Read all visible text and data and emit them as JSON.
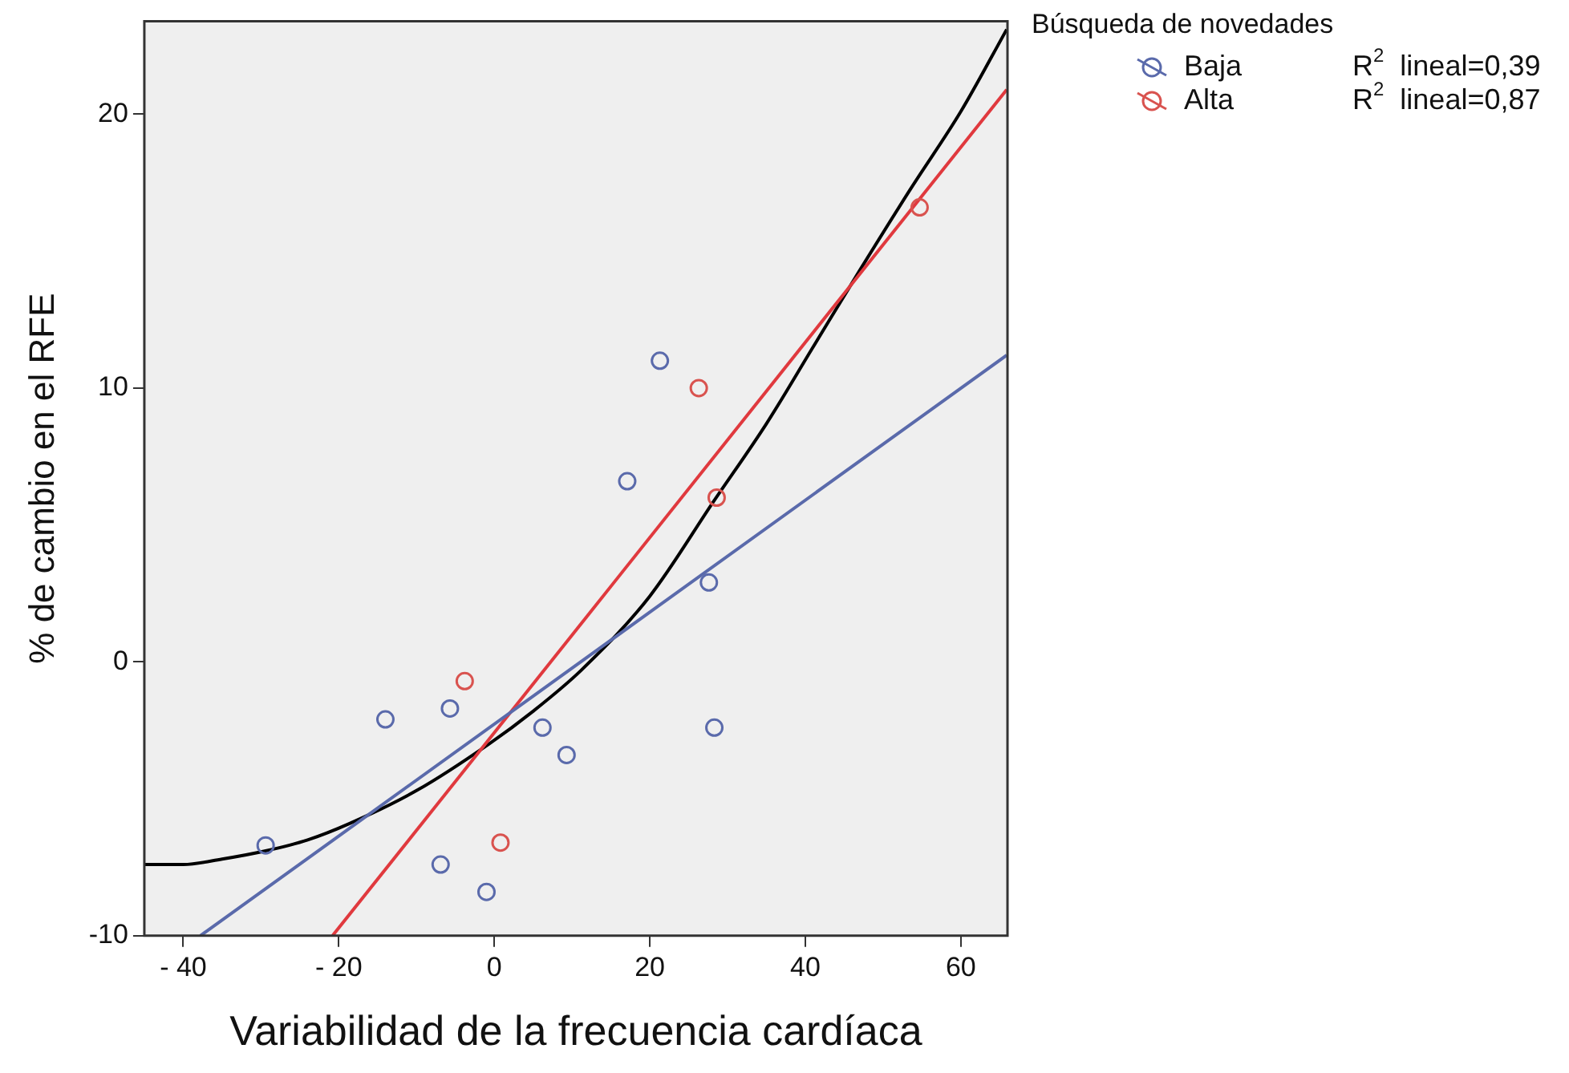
{
  "chart_data": {
    "type": "scatter",
    "xlabel": "Variabilidad de la frecuencia cardíaca",
    "ylabel": "% de cambio en el RFE",
    "legend_title": "Búsqueda de novedades",
    "legend": "top right",
    "xlim": [
      -45,
      66
    ],
    "xticks": [
      {
        "value": -40,
        "label": "- 40"
      },
      {
        "value": -20,
        "label": "- 20"
      },
      0,
      20,
      40,
      60
    ],
    "ylim": [
      -10,
      23.4
    ],
    "yticks": [
      -10,
      0,
      10,
      20
    ],
    "annotations": [
      "R$^{2}$ lineal=0,39",
      "R$^{2}$ lineal=0,87"
    ],
    "series": [
      {
        "name": "Baja",
        "marker": "circle",
        "color": "#5a6aab",
        "x": [
          -29.4,
          -14.0,
          -5.7,
          -6.9,
          -1.0,
          6.2,
          9.3,
          27.6,
          28.3,
          17.1,
          21.3
        ],
        "values": [
          -6.7,
          -2.1,
          -1.7,
          -7.4,
          -8.4,
          -2.4,
          -3.4,
          2.9,
          -2.4,
          6.6,
          11.0
        ]
      },
      {
        "name": "Alta",
        "marker": "circle",
        "color": "#d9534f",
        "x": [
          -3.8,
          0.8,
          26.3,
          28.6,
          54.7
        ],
        "values": [
          -0.7,
          -6.6,
          10.0,
          6.0,
          16.6
        ]
      },
      {
        "type": "line",
        "marker": "none",
        "line_style": "solid",
        "color": "#5a6aab",
        "x": [
          -37.8,
          65.9
        ],
        "values": [
          -10,
          11.2
        ]
      },
      {
        "type": "line",
        "marker": "none",
        "line_style": "solid",
        "color": "#e0393e",
        "x": [
          -20.8,
          65.9
        ],
        "values": [
          -10,
          20.9
        ]
      },
      {
        "type": "line",
        "marker": "none",
        "line_style": "solid",
        "color": "#000000",
        "x": [
          -45,
          -40,
          -35,
          -29.4,
          -24,
          -18.6,
          -10,
          -0.7,
          5,
          11.2,
          20,
          28.3,
          35,
          41,
          47,
          53.6,
          60,
          65.9
        ],
        "values": [
          -7.4,
          -7.4,
          -7.2,
          -6.9,
          -6.5,
          -5.9,
          -4.7,
          -3.0,
          -1.8,
          -0.3,
          2.4,
          5.9,
          8.7,
          11.5,
          14.3,
          17.3,
          20.1,
          23.1
        ]
      }
    ]
  }
}
